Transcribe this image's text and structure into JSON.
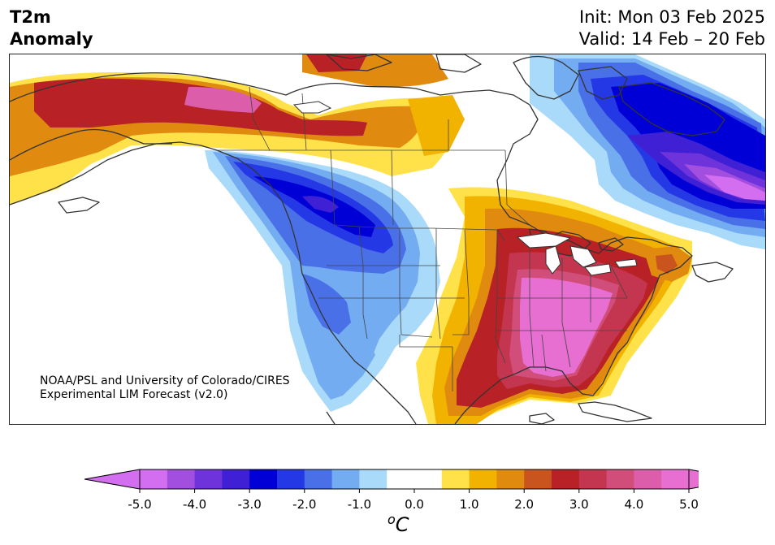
{
  "title": {
    "left_line1": "T2m",
    "left_line2": "Anomaly",
    "init": "Init: Mon 03 Feb 2025",
    "valid": "Valid: 14 Feb – 20 Feb"
  },
  "credit": {
    "line1": "NOAA/PSL and University of Colorado/CIRES",
    "line2": "Experimental LIM Forecast (v2.0)"
  },
  "colorbar": {
    "min": -5.0,
    "max": 5.0,
    "step": 0.5,
    "extend": "both",
    "unit_prefix": "o",
    "unit_main": "C",
    "ticks": [
      "-5.0",
      "-4.0",
      "-3.0",
      "-2.0",
      "-1.0",
      "0.0",
      "1.0",
      "2.0",
      "3.0",
      "4.0",
      "5.0"
    ],
    "colors": [
      "#d36ef0",
      "#a24fe0",
      "#6f33db",
      "#4020d4",
      "#0000d6",
      "#2438e6",
      "#4a70e8",
      "#74acf2",
      "#aadaf9",
      "#ffffff",
      "#ffffff",
      "#ffe24a",
      "#f2b200",
      "#e08a10",
      "#c9541e",
      "#b82126",
      "#c43650",
      "#d14e7a",
      "#dc5eaa",
      "#e86fd2"
    ]
  },
  "map": {
    "region": "North America",
    "variable": "2-m temperature anomaly",
    "anomaly_pattern": [
      {
        "area": "Alaska and northern Yukon",
        "anomaly_c": 3.5
      },
      {
        "area": "Northwest Territories",
        "anomaly_c": 3.0
      },
      {
        "area": "Hudson Bay / northern Manitoba",
        "anomaly_c": 1.5
      },
      {
        "area": "Western Canada (BC, Alberta, Saskatchewan)",
        "anomaly_c": -3.0
      },
      {
        "area": "US Northern Plains (Montana, Dakotas)",
        "anomaly_c": -2.5
      },
      {
        "area": "US West / Great Basin / Southwest",
        "anomaly_c": -2.0
      },
      {
        "area": "Southern High Plains",
        "anomaly_c": -1.0
      },
      {
        "area": "Upper Midwest / Great Lakes",
        "anomaly_c": 2.0
      },
      {
        "area": "Texas and Gulf coast",
        "anomaly_c": 3.0
      },
      {
        "area": "Southeast US and Mid-Atlantic",
        "anomaly_c": 4.5
      },
      {
        "area": "Northeast US",
        "anomaly_c": 2.5
      },
      {
        "area": "Quebec and Labrador",
        "anomaly_c": -4.0
      },
      {
        "area": "Baffin Island",
        "anomaly_c": -3.0
      }
    ]
  }
}
